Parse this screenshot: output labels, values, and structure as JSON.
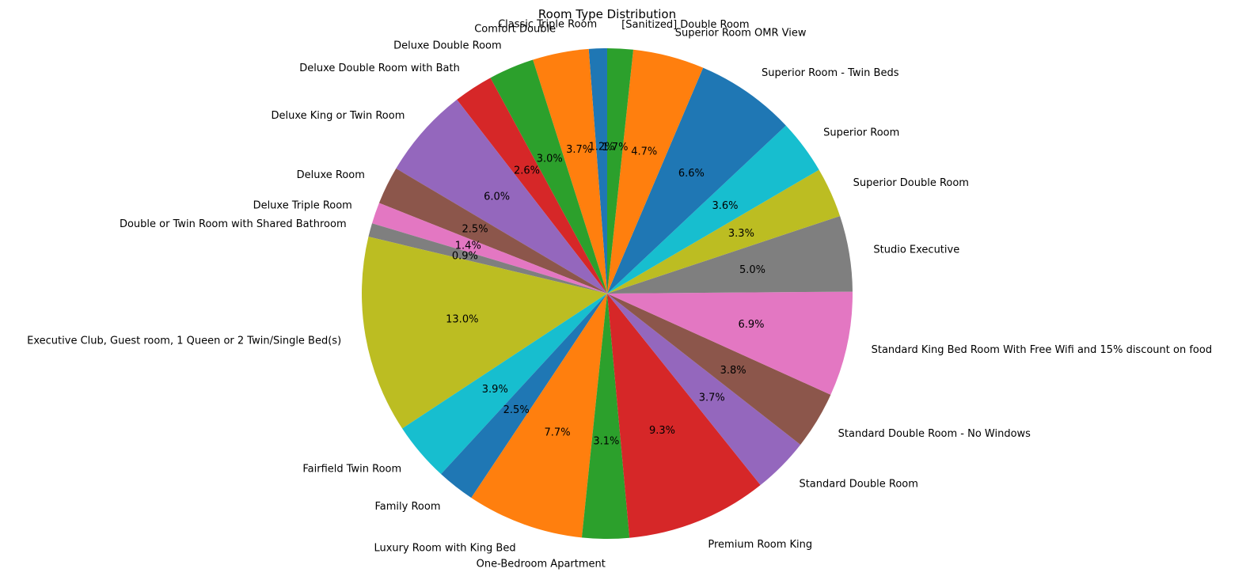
{
  "chart_data": {
    "type": "pie",
    "title": "Room Type Distribution",
    "start_angle_deg": 90,
    "direction": "counterclockwise",
    "autopct_format": "%.1f%%",
    "colors": [
      "#1f77b4",
      "#ff7f0e",
      "#2ca02c",
      "#d62728",
      "#9467bd",
      "#8c564b",
      "#e377c2",
      "#7f7f7f",
      "#bcbd22",
      "#17becf"
    ],
    "slices": [
      {
        "label": "Classic Triple Room",
        "value": 1.2
      },
      {
        "label": "Comfort Double",
        "value": 3.7
      },
      {
        "label": "Deluxe Double Room",
        "value": 3.0
      },
      {
        "label": "Deluxe Double Room with Bath",
        "value": 2.6
      },
      {
        "label": "Deluxe King or Twin Room",
        "value": 6.0
      },
      {
        "label": "Deluxe Room",
        "value": 2.5
      },
      {
        "label": "Deluxe Triple Room",
        "value": 1.4
      },
      {
        "label": "Double or Twin Room with Shared Bathroom",
        "value": 0.9
      },
      {
        "label": "Executive Club, Guest room, 1 Queen or 2 Twin/Single Bed(s)",
        "value": 13.0
      },
      {
        "label": "Fairfield Twin Room",
        "value": 3.9
      },
      {
        "label": "Family Room",
        "value": 2.5
      },
      {
        "label": "Luxury Room with King Bed",
        "value": 7.7
      },
      {
        "label": "One-Bedroom Apartment",
        "value": 3.1
      },
      {
        "label": "Premium Room King",
        "value": 9.3
      },
      {
        "label": "Standard Double Room",
        "value": 3.7
      },
      {
        "label": "Standard Double Room - No Windows",
        "value": 3.8
      },
      {
        "label": "Standard King Bed Room With Free Wifi and 15% discount on food",
        "value": 6.9
      },
      {
        "label": "Studio Executive",
        "value": 5.0
      },
      {
        "label": "Superior Double Room",
        "value": 3.3
      },
      {
        "label": "Superior Room",
        "value": 3.6
      },
      {
        "label": "Superior Room - Twin Beds",
        "value": 6.6
      },
      {
        "label": "Superior Room OMR View",
        "value": 4.7
      },
      {
        "label": "[Sanitized] Double Room",
        "value": 1.7
      }
    ],
    "legend": "none"
  }
}
